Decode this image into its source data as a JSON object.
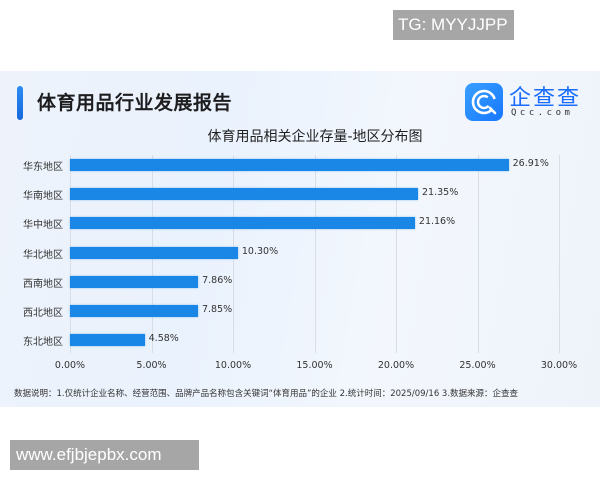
{
  "watermarks": {
    "top_right": "TG: MYYJJPP",
    "bottom_left": "www.efjbjepbx.com"
  },
  "header": {
    "report_title": "体育用品行业发展报告",
    "logo_cn": "企查查",
    "logo_en": "Qcc.com",
    "icon": "qcc-logo-icon"
  },
  "colors": {
    "bar": "#1a87e6",
    "accent": "#1668dc",
    "logo": "#1a6dff"
  },
  "chart_data": {
    "type": "bar",
    "orientation": "horizontal",
    "title": "体育用品相关企业存量-地区分布图",
    "categories": [
      "华东地区",
      "华南地区",
      "华中地区",
      "华北地区",
      "西南地区",
      "西北地区",
      "东北地区"
    ],
    "values": [
      26.91,
      21.35,
      21.16,
      10.3,
      7.86,
      7.85,
      4.58
    ],
    "value_labels": [
      "26.91%",
      "21.35%",
      "21.16%",
      "10.30%",
      "7.86%",
      "7.85%",
      "4.58%"
    ],
    "unit": "%",
    "xlim": [
      0,
      30
    ],
    "xticks": [
      "0.00%",
      "5.00%",
      "10.00%",
      "15.00%",
      "20.00%",
      "25.00%",
      "30.00%"
    ],
    "xlabel": "",
    "ylabel": "",
    "grid": "vertical",
    "legend": "none"
  },
  "footnote": "数据说明：1.仅统计企业名称、经营范围、品牌产品名称包含关键词“体育用品”的企业   2.统计时间：2025/09/16   3.数据来源：企查查"
}
